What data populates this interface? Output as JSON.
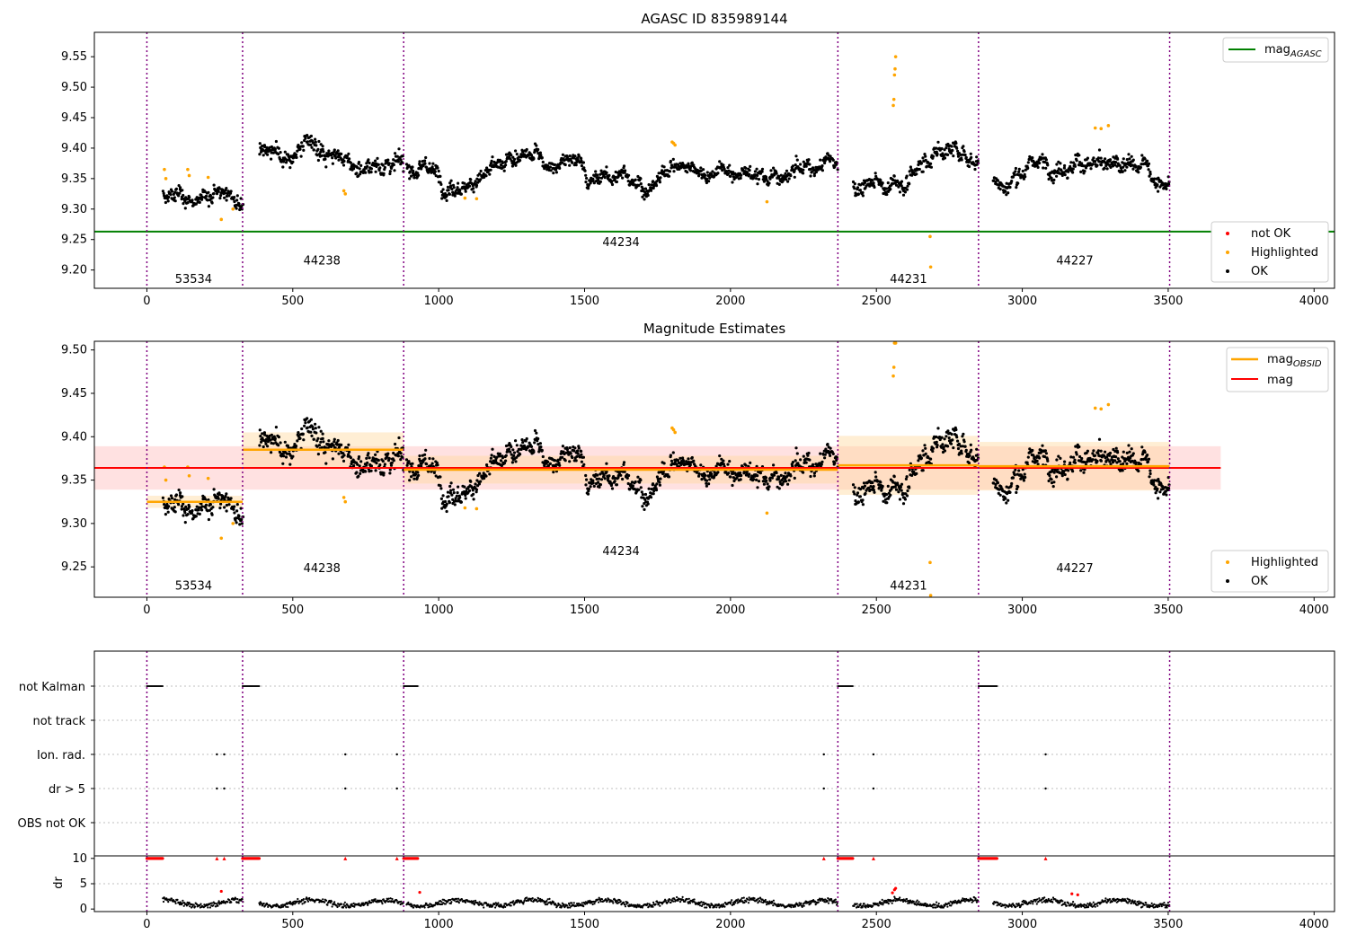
{
  "chart_data": [
    {
      "type": "scatter",
      "title": "AGASC ID 835989144",
      "xlim": [
        -180,
        4070
      ],
      "ylim": [
        9.17,
        9.59
      ],
      "yticks": [
        "9.20",
        "9.25",
        "9.30",
        "9.35",
        "9.40",
        "9.45",
        "9.50",
        "9.55"
      ],
      "xticks": [
        "0",
        "500",
        "1000",
        "1500",
        "2000",
        "2500",
        "3000",
        "3500",
        "4000"
      ],
      "obsid_boundaries": [
        0,
        328,
        880,
        2368,
        2850,
        3505
      ],
      "obsid_labels": [
        {
          "text": "53534",
          "x": 160,
          "y": 9.185
        },
        {
          "text": "44238",
          "x": 600,
          "y": 9.215
        },
        {
          "text": "44234",
          "x": 1625,
          "y": 9.245
        },
        {
          "text": "44231",
          "x": 2610,
          "y": 9.185
        },
        {
          "text": "44227",
          "x": 3180,
          "y": 9.215
        }
      ],
      "hline": {
        "name": "mag_AGASC",
        "y": 9.263,
        "color": "#008000"
      },
      "legend_line": {
        "base": "mag",
        "sub": "AGASC"
      },
      "legend_points": [
        "not OK",
        "Highlighted",
        "OK"
      ],
      "segments_ok": [
        {
          "x": [
            55,
            330
          ],
          "base": 9.325,
          "amp": 0.008,
          "noise": 0.012
        },
        {
          "x": [
            385,
            880
          ],
          "base": 9.385,
          "amp": 0.022,
          "noise": 0.014
        },
        {
          "x": [
            890,
            2368
          ],
          "base": 9.362,
          "amp": 0.016,
          "noise": 0.012
        },
        {
          "x": [
            2420,
            2850
          ],
          "base": 9.365,
          "amp": 0.035,
          "noise": 0.015
        },
        {
          "x": [
            2900,
            3505
          ],
          "base": 9.363,
          "amp": 0.028,
          "noise": 0.013
        }
      ],
      "highlighted": [
        [
          60,
          9.365
        ],
        [
          65,
          9.35
        ],
        [
          140,
          9.365
        ],
        [
          145,
          9.355
        ],
        [
          210,
          9.352
        ],
        [
          255,
          9.283
        ],
        [
          295,
          9.3
        ],
        [
          675,
          9.33
        ],
        [
          680,
          9.325
        ],
        [
          1090,
          9.318
        ],
        [
          1130,
          9.317
        ],
        [
          1800,
          9.41
        ],
        [
          1805,
          9.408
        ],
        [
          1810,
          9.405
        ],
        [
          2125,
          9.312
        ],
        [
          2558,
          9.47
        ],
        [
          2560,
          9.48
        ],
        [
          2562,
          9.52
        ],
        [
          2564,
          9.53
        ],
        [
          2566,
          9.55
        ],
        [
          2684,
          9.255
        ],
        [
          2686,
          9.205
        ],
        [
          3250,
          9.433
        ],
        [
          3270,
          9.432
        ],
        [
          3295,
          9.437
        ]
      ],
      "colors": {
        "ok": "#000000",
        "highlighted": "#ffa500",
        "not_ok": "#ff0000",
        "boundary": "#800080"
      }
    },
    {
      "type": "scatter",
      "title": "Magnitude Estimates",
      "xlim": [
        -180,
        4070
      ],
      "ylim": [
        9.215,
        9.51
      ],
      "yticks": [
        "9.25",
        "9.30",
        "9.35",
        "9.40",
        "9.45",
        "9.50"
      ],
      "xticks": [
        "0",
        "500",
        "1000",
        "1500",
        "2000",
        "2500",
        "3000",
        "3500",
        "4000"
      ],
      "obsid_boundaries": [
        0,
        328,
        880,
        2368,
        2850,
        3505
      ],
      "obsid_labels": [
        {
          "text": "53534",
          "x": 160,
          "y": 9.228
        },
        {
          "text": "44238",
          "x": 600,
          "y": 9.248
        },
        {
          "text": "44234",
          "x": 1625,
          "y": 9.268
        },
        {
          "text": "44231",
          "x": 2610,
          "y": 9.228
        },
        {
          "text": "44227",
          "x": 3180,
          "y": 9.248
        }
      ],
      "mag": {
        "y": 9.364,
        "band": [
          9.339,
          9.389
        ],
        "xrange": [
          -180,
          3680
        ],
        "color": "#ff0000"
      },
      "mag_obsid": [
        {
          "x": [
            0,
            328
          ],
          "y": 9.325,
          "band": [
            9.318,
            9.332
          ]
        },
        {
          "x": [
            328,
            880
          ],
          "y": 9.385,
          "band": [
            9.365,
            9.405
          ]
        },
        {
          "x": [
            880,
            2368
          ],
          "y": 9.362,
          "band": [
            9.346,
            9.378
          ]
        },
        {
          "x": [
            2368,
            2850
          ],
          "y": 9.367,
          "band": [
            9.333,
            9.401
          ]
        },
        {
          "x": [
            2850,
            3505
          ],
          "y": 9.366,
          "band": [
            9.338,
            9.394
          ]
        }
      ],
      "legend_lines": [
        {
          "base": "mag",
          "sub": "OBSID"
        },
        {
          "base": "mag",
          "sub": ""
        }
      ],
      "legend_points": [
        "Highlighted",
        "OK"
      ]
    },
    {
      "type": "scatter",
      "xlim": [
        -180,
        4070
      ],
      "xticks": [
        "0",
        "500",
        "1000",
        "1500",
        "2000",
        "2500",
        "3000",
        "3500",
        "4000"
      ],
      "flag_labels": [
        "not Kalman",
        "not track",
        "Ion. rad.",
        "dr > 5",
        "OBS not OK"
      ],
      "not_kalman_ranges": [
        [
          0,
          55
        ],
        [
          328,
          385
        ],
        [
          880,
          930
        ],
        [
          2368,
          2420
        ],
        [
          2850,
          2915
        ]
      ],
      "ion_rad_points": [
        240,
        265,
        680,
        857,
        2320,
        2490,
        3080
      ],
      "dr_gt5_points": [
        240,
        265,
        680,
        857,
        2320,
        2490,
        3080
      ],
      "dr_ylabel": "dr",
      "dr_yticks": [
        "0",
        "5",
        "10"
      ],
      "dr_ylim": [
        -0.5,
        10.5
      ],
      "dr_spikes": [
        [
          255,
          3.5
        ],
        [
          935,
          3.3
        ],
        [
          2555,
          3.2
        ],
        [
          2562,
          3.8
        ],
        [
          2566,
          4.1
        ],
        [
          3170,
          3.0
        ],
        [
          3190,
          2.8
        ]
      ]
    }
  ]
}
